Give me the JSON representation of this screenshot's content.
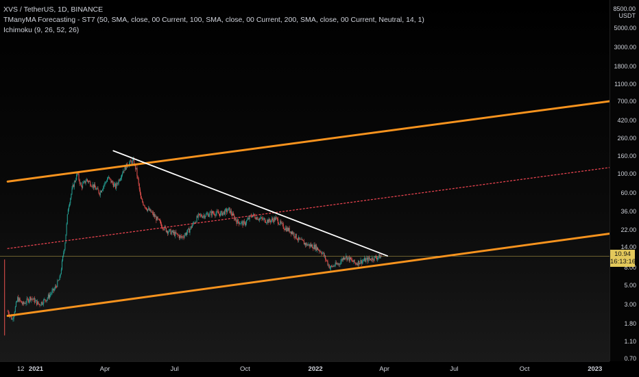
{
  "header": {
    "title": "XVS / TetherUS, 1D, BINANCE",
    "indicator_ma": "TManyMA Forecasting - ST7 (50, SMA, close, 00 Current, 100, SMA, close, 00 Current, 200, SMA, close, 00 Current, Neutral, 14, 1)",
    "indicator_ichimoku": "Ichimoku (9, 26, 52, 26)"
  },
  "price_axis": {
    "unit_top": "8500.00",
    "unit_label": "USDT",
    "current_price": "10.94",
    "countdown": "16:13:16"
  },
  "colors": {
    "channel": "#f7931e",
    "midline": "#e8434f",
    "trendline": "#ffffff",
    "candle_up": "#26a69a",
    "candle_down": "#ef5350",
    "price_badge": "#e3c85b"
  },
  "chart_data": {
    "type": "candlestick",
    "symbol": "XVS / TetherUS",
    "interval": "1D",
    "exchange": "BINANCE",
    "y_scale": "log",
    "ylim": [
      0.7,
      8500
    ],
    "y_ticks": [
      "5000.00",
      "3000.00",
      "1800.00",
      "1100.00",
      "700.00",
      "420.00",
      "260.00",
      "160.00",
      "100.00",
      "60.00",
      "36.00",
      "22.00",
      "14.00",
      "8.00",
      "5.00",
      "3.00",
      "1.80",
      "1.10",
      "0.70"
    ],
    "x_ticks": [
      "12",
      "2021",
      "Apr",
      "Jul",
      "Oct",
      "2022",
      "Apr",
      "Jul",
      "Oct",
      "2023"
    ],
    "xlim": [
      "2020-11-15",
      "2023-01-20"
    ],
    "current_price": 10.94,
    "price_path": [
      [
        "2020-11-25",
        2.5
      ],
      [
        "2020-12-01",
        2.0
      ],
      [
        "2020-12-08",
        3.5
      ],
      [
        "2020-12-15",
        3.0
      ],
      [
        "2020-12-25",
        3.6
      ],
      [
        "2021-01-05",
        3.0
      ],
      [
        "2021-01-15",
        3.5
      ],
      [
        "2021-01-25",
        4.5
      ],
      [
        "2021-02-01",
        6.0
      ],
      [
        "2021-02-08",
        16.0
      ],
      [
        "2021-02-12",
        40.0
      ],
      [
        "2021-02-18",
        70.0
      ],
      [
        "2021-02-24",
        100.0
      ],
      [
        "2021-03-01",
        70.0
      ],
      [
        "2021-03-08",
        85.0
      ],
      [
        "2021-03-15",
        75.0
      ],
      [
        "2021-03-25",
        60.0
      ],
      [
        "2021-04-05",
        90.0
      ],
      [
        "2021-04-15",
        70.0
      ],
      [
        "2021-04-25",
        110.0
      ],
      [
        "2021-05-01",
        130.0
      ],
      [
        "2021-05-08",
        140.0
      ],
      [
        "2021-05-12",
        110.0
      ],
      [
        "2021-05-18",
        50.0
      ],
      [
        "2021-05-25",
        40.0
      ],
      [
        "2021-06-01",
        35.0
      ],
      [
        "2021-06-10",
        28.0
      ],
      [
        "2021-06-20",
        22.0
      ],
      [
        "2021-07-01",
        20.0
      ],
      [
        "2021-07-10",
        18.0
      ],
      [
        "2021-07-20",
        22.0
      ],
      [
        "2021-08-01",
        32.0
      ],
      [
        "2021-08-10",
        33.0
      ],
      [
        "2021-08-20",
        35.0
      ],
      [
        "2021-08-30",
        34.0
      ],
      [
        "2021-09-10",
        38.0
      ],
      [
        "2021-09-20",
        28.0
      ],
      [
        "2021-09-30",
        26.0
      ],
      [
        "2021-10-10",
        33.0
      ],
      [
        "2021-10-20",
        30.0
      ],
      [
        "2021-11-01",
        28.0
      ],
      [
        "2021-11-10",
        30.0
      ],
      [
        "2021-11-20",
        24.0
      ],
      [
        "2021-12-01",
        21.0
      ],
      [
        "2021-12-10",
        17.0
      ],
      [
        "2021-12-20",
        15.0
      ],
      [
        "2022-01-01",
        14.0
      ],
      [
        "2022-01-10",
        12.0
      ],
      [
        "2022-01-20",
        8.0
      ],
      [
        "2022-01-25",
        8.5
      ],
      [
        "2022-02-01",
        9.0
      ],
      [
        "2022-02-08",
        11.0
      ],
      [
        "2022-02-15",
        10.0
      ],
      [
        "2022-02-22",
        9.0
      ],
      [
        "2022-03-01",
        9.5
      ],
      [
        "2022-03-10",
        10.0
      ],
      [
        "2022-03-20",
        10.5
      ],
      [
        "2022-03-28",
        10.94
      ]
    ],
    "first_candle_range": {
      "date": "2020-11-21",
      "high": 10.0,
      "low": 1.3
    },
    "drawings": [
      {
        "name": "channel-upper",
        "style": "solid",
        "color": "#f7931e",
        "from": [
          "2020-11-25",
          81
        ],
        "to": [
          "2023-01-20",
          700
        ]
      },
      {
        "name": "channel-lower",
        "style": "solid",
        "color": "#f7931e",
        "from": [
          "2020-11-25",
          2.2
        ],
        "to": [
          "2023-01-20",
          20
        ]
      },
      {
        "name": "channel-mid",
        "style": "dotted",
        "color": "#e8434f",
        "from": [
          "2020-11-25",
          13.4
        ],
        "to": [
          "2023-01-20",
          118
        ]
      },
      {
        "name": "descending-trendline",
        "style": "solid",
        "color": "#ffffff",
        "from": [
          "2021-04-12",
          185
        ],
        "to": [
          "2022-04-05",
          11.0
        ]
      }
    ]
  }
}
